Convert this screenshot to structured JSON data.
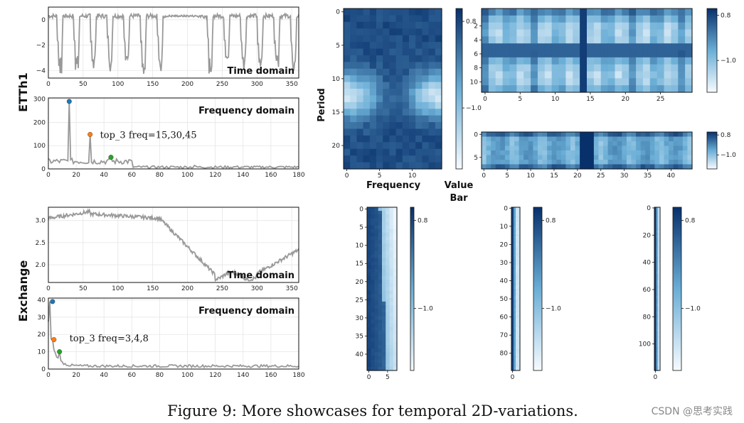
{
  "caption": "Figure 9: More showcases for temporal 2D-variations.",
  "watermark": "CSDN @思考实践",
  "row_labels": {
    "etth1": "ETTh1",
    "exchange": "Exchange"
  },
  "panel_titles": {
    "time_domain": "Time domain",
    "frequency_domain": "Frequency domain"
  },
  "heatmap_labels": {
    "x": "Frequency",
    "y": "Period",
    "colorbar_line1": "Value",
    "colorbar_line2": "Bar"
  },
  "colormap": {
    "low": "#f7fbff",
    "mid": "#6aaed6",
    "high": "#08306b",
    "series": "#999999",
    "top1": "#1f77b4",
    "top2": "#ff7f0e",
    "top3": "#2ca02c"
  },
  "chart_data": [
    {
      "id": "etth1_time",
      "type": "line",
      "title": "Time domain",
      "xlim": [
        0,
        360
      ],
      "ylim": [
        -4.6,
        1.0
      ],
      "xticks": [
        "0",
        "50",
        "100",
        "150",
        "200",
        "250",
        "300",
        "350"
      ],
      "yticks": [
        "0",
        "−2",
        "−4"
      ]
    },
    {
      "id": "etth1_freq",
      "type": "line",
      "title": "Frequency domain",
      "xlim": [
        0,
        180
      ],
      "ylim": [
        0,
        305
      ],
      "xticks": [
        "0",
        "20",
        "40",
        "60",
        "80",
        "100",
        "120",
        "140",
        "160",
        "180"
      ],
      "yticks": [
        "0",
        "100",
        "200",
        "300"
      ],
      "peaks": [
        {
          "x": 15,
          "y": 290
        },
        {
          "x": 30,
          "y": 148
        },
        {
          "x": 45,
          "y": 50
        }
      ],
      "annotation": "top_3 freq=15,30,45"
    },
    {
      "id": "exchange_time",
      "type": "line",
      "title": "Time domain",
      "xlim": [
        0,
        360
      ],
      "ylim": [
        1.6,
        3.3
      ],
      "xticks": [
        "0",
        "50",
        "100",
        "150",
        "200",
        "250",
        "300",
        "350"
      ],
      "yticks": [
        "2.0",
        "2.5",
        "3.0"
      ]
    },
    {
      "id": "exchange_freq",
      "type": "line",
      "title": "Frequency domain",
      "xlim": [
        0,
        180
      ],
      "ylim": [
        0,
        41
      ],
      "xticks": [
        "0",
        "20",
        "40",
        "60",
        "80",
        "100",
        "120",
        "140",
        "160",
        "180"
      ],
      "yticks": [
        "0",
        "10",
        "20",
        "30",
        "40"
      ],
      "peaks": [
        {
          "x": 3,
          "y": 39
        },
        {
          "x": 4,
          "y": 17
        },
        {
          "x": 8,
          "y": 10
        }
      ],
      "annotation": "top_3 freq=3,4,8"
    },
    {
      "id": "hm_etth1_15",
      "type": "heatmap",
      "rows": 24,
      "cols": 15,
      "xticks": [
        "0",
        "5",
        "10"
      ],
      "yticks": [
        "0",
        "5",
        "10",
        "15",
        "20"
      ],
      "colorbar_ticks": [
        "0.8",
        "−1.0"
      ]
    },
    {
      "id": "hm_etth1_30",
      "type": "heatmap",
      "rows": 12,
      "cols": 30,
      "xticks": [
        "0",
        "5",
        "10",
        "15",
        "20",
        "25"
      ],
      "yticks": [
        "2",
        "4",
        "6",
        "8",
        "10"
      ],
      "colorbar_ticks": [
        "0.8",
        "−1.0"
      ]
    },
    {
      "id": "hm_etth1_45",
      "type": "heatmap",
      "rows": 8,
      "cols": 45,
      "xticks": [
        "0",
        "5",
        "10",
        "15",
        "20",
        "25",
        "30",
        "35",
        "40"
      ],
      "yticks": [
        "0",
        "5"
      ],
      "colorbar_ticks": [
        "0.8",
        "−1.0"
      ]
    },
    {
      "id": "hm_exch_8",
      "type": "heatmap",
      "rows": 45,
      "cols": 8,
      "xticks": [
        "0",
        "5"
      ],
      "yticks": [
        "0",
        "5",
        "10",
        "15",
        "20",
        "25",
        "30",
        "35",
        "40"
      ],
      "colorbar_ticks": [
        "0.8",
        "−1.0"
      ]
    },
    {
      "id": "hm_exch_4",
      "type": "heatmap",
      "rows": 90,
      "cols": 4,
      "xticks": [
        "0"
      ],
      "yticks": [
        "0",
        "10",
        "20",
        "30",
        "40",
        "50",
        "60",
        "70",
        "80"
      ],
      "colorbar_ticks": [
        "0.8",
        "−1.0"
      ]
    },
    {
      "id": "hm_exch_3",
      "type": "heatmap",
      "rows": 120,
      "cols": 3,
      "xticks": [
        "0"
      ],
      "yticks": [
        "0",
        "20",
        "40",
        "60",
        "80",
        "100"
      ],
      "colorbar_ticks": [
        "0.8",
        "−1.0"
      ]
    }
  ]
}
